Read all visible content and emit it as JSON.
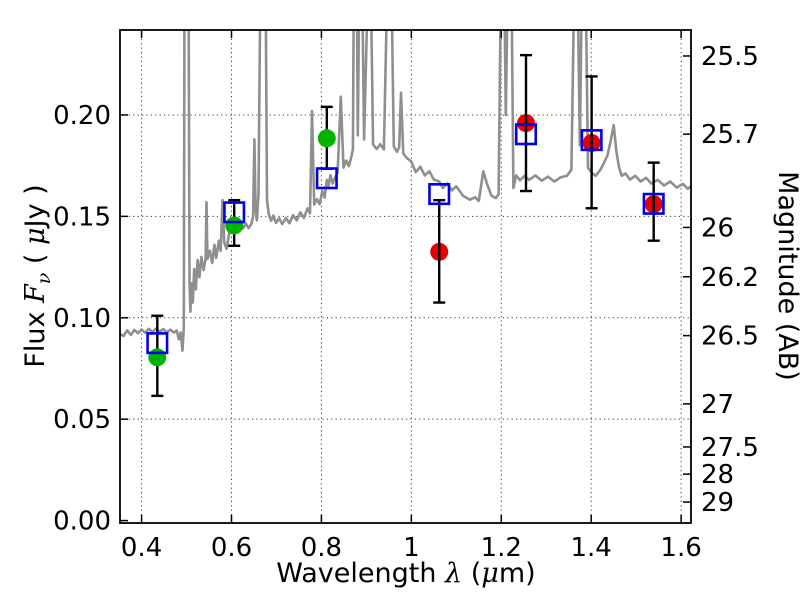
{
  "chart_data": {
    "type": "line",
    "title": "",
    "xlabel_plain": "Wavelength λ (μm)",
    "ylabel_left_plain": "Flux Fν ( μJy )",
    "ylabel_right": "Magnitude (AB)",
    "xlim": [
      0.352,
      1.622
    ],
    "ylim_flux": [
      -0.0012,
      0.2419
    ],
    "x_ticks": [
      0.4,
      0.6,
      0.8,
      1.0,
      1.2,
      1.4,
      1.6
    ],
    "x_tick_labels": [
      "0.4",
      "0.6",
      "0.8",
      "1",
      "1.2",
      "1.4",
      "1.6"
    ],
    "y_ticks_left": [
      0.0,
      0.05,
      0.1,
      0.15,
      0.2
    ],
    "y_tick_labels_left": [
      "0.00",
      "0.05",
      "0.10",
      "0.15",
      "0.20"
    ],
    "y_ticks_right_mag": [
      25.5,
      25.7,
      26,
      26.2,
      26.5,
      27,
      27.5,
      28,
      29
    ],
    "y_tick_labels_right": [
      "25.5",
      "25.7",
      "26",
      "26.2",
      "26.5",
      "27",
      "27.5",
      "28",
      "29"
    ],
    "mag_zeropoint_ab": 23.9,
    "grid": "dotted, both axes at major ticks",
    "legend": "none",
    "xlabel_parts": [
      {
        "t": "Wavelength  ",
        "mi": false
      },
      {
        "t": "λ",
        "mi": true
      },
      {
        "t": " (",
        "mi": false
      },
      {
        "t": "μ",
        "mi": true
      },
      {
        "t": "m)",
        "mi": false
      }
    ],
    "ylabel_left_parts": [
      {
        "t": "Flux  ",
        "mi": false
      },
      {
        "t": "F",
        "mi": true
      },
      {
        "t": "ν",
        "mi": true,
        "sub": true
      },
      {
        "t": " ( ",
        "mi": false
      },
      {
        "t": "μ",
        "mi": true
      },
      {
        "t": "Jy )",
        "mi": false
      }
    ],
    "colors": {
      "spectrum": "#8f8f8f",
      "green_marker": "#00b300",
      "red_marker": "#e80000",
      "blue_square": "#0000ee",
      "error_bar": "#000000",
      "frame": "#000000",
      "grid": "#3a3a3a"
    },
    "series": [
      {
        "name": "model-spectrum",
        "type": "line",
        "points": [
          [
            0.352,
            0.092
          ],
          [
            0.36,
            0.091
          ],
          [
            0.368,
            0.0938
          ],
          [
            0.376,
            0.0915
          ],
          [
            0.384,
            0.094
          ],
          [
            0.392,
            0.0924
          ],
          [
            0.4,
            0.0942
          ],
          [
            0.408,
            0.0926
          ],
          [
            0.416,
            0.0945
          ],
          [
            0.424,
            0.093
          ],
          [
            0.432,
            0.0947
          ],
          [
            0.44,
            0.0931
          ],
          [
            0.448,
            0.0944
          ],
          [
            0.456,
            0.0929
          ],
          [
            0.464,
            0.0941
          ],
          [
            0.472,
            0.0927
          ],
          [
            0.478,
            0.0937
          ],
          [
            0.483,
            0.0894
          ],
          [
            0.487,
            0.0928
          ],
          [
            0.491,
            0.0838
          ],
          [
            0.494,
            0.095
          ],
          [
            0.4955,
            0.26
          ],
          [
            0.5045,
            0.26
          ],
          [
            0.5065,
            0.118
          ],
          [
            0.5085,
            0.103
          ],
          [
            0.511,
            0.117
          ],
          [
            0.514,
            0.1075
          ],
          [
            0.517,
            0.124
          ],
          [
            0.5205,
            0.114
          ],
          [
            0.5245,
            0.1285
          ],
          [
            0.5285,
            0.12
          ],
          [
            0.533,
            0.13
          ],
          [
            0.538,
            0.1235
          ],
          [
            0.5425,
            0.129
          ],
          [
            0.5445,
            0.157
          ],
          [
            0.5465,
            0.129
          ],
          [
            0.552,
            0.133
          ],
          [
            0.557,
            0.127
          ],
          [
            0.562,
            0.136
          ],
          [
            0.566,
            0.1295
          ],
          [
            0.572,
            0.138
          ],
          [
            0.576,
            0.133
          ],
          [
            0.58,
            0.158
          ],
          [
            0.584,
            0.137
          ],
          [
            0.589,
            0.134
          ],
          [
            0.595,
            0.142
          ],
          [
            0.6,
            0.146
          ],
          [
            0.605,
            0.1432
          ],
          [
            0.61,
            0.1478
          ],
          [
            0.615,
            0.145
          ],
          [
            0.62,
            0.1473
          ],
          [
            0.626,
            0.1441
          ],
          [
            0.632,
            0.1464
          ],
          [
            0.638,
            0.1442
          ],
          [
            0.644,
            0.1462
          ],
          [
            0.648,
            0.15
          ],
          [
            0.651,
            0.188
          ],
          [
            0.6535,
            0.153
          ],
          [
            0.6565,
            0.148
          ],
          [
            0.66,
            0.161
          ],
          [
            0.664,
            0.26
          ],
          [
            0.676,
            0.26
          ],
          [
            0.679,
            0.158
          ],
          [
            0.683,
            0.151
          ],
          [
            0.688,
            0.1478
          ],
          [
            0.693,
            0.1504
          ],
          [
            0.699,
            0.1468
          ],
          [
            0.706,
            0.149
          ],
          [
            0.713,
            0.1462
          ],
          [
            0.721,
            0.1492
          ],
          [
            0.729,
            0.1466
          ],
          [
            0.737,
            0.1506
          ],
          [
            0.745,
            0.148
          ],
          [
            0.753,
            0.152
          ],
          [
            0.761,
            0.1492
          ],
          [
            0.769,
            0.154
          ],
          [
            0.7745,
            0.1515
          ],
          [
            0.779,
            0.202
          ],
          [
            0.784,
            0.1558
          ],
          [
            0.79,
            0.1585
          ],
          [
            0.796,
            0.156
          ],
          [
            0.802,
            0.1625
          ],
          [
            0.807,
            0.1592
          ],
          [
            0.812,
            0.168
          ],
          [
            0.816,
            0.1652
          ],
          [
            0.82,
            0.1703
          ],
          [
            0.825,
            0.1662
          ],
          [
            0.83,
            0.169
          ],
          [
            0.836,
            0.1716
          ],
          [
            0.843,
            0.209
          ],
          [
            0.849,
            0.174
          ],
          [
            0.855,
            0.1775
          ],
          [
            0.861,
            0.1748
          ],
          [
            0.866,
            0.1788
          ],
          [
            0.87,
            0.183
          ],
          [
            0.872,
            0.26
          ],
          [
            0.879,
            0.26
          ],
          [
            0.881,
            0.19
          ],
          [
            0.884,
            0.26
          ],
          [
            0.891,
            0.26
          ],
          [
            0.895,
            0.188
          ],
          [
            0.903,
            0.26
          ],
          [
            0.91,
            0.26
          ],
          [
            0.915,
            0.1855
          ],
          [
            0.923,
            0.1832
          ],
          [
            0.931,
            0.1856
          ],
          [
            0.939,
            0.183
          ],
          [
            0.946,
            0.26
          ],
          [
            0.956,
            0.26
          ],
          [
            0.961,
            0.1845
          ],
          [
            0.968,
            0.1818
          ],
          [
            0.973,
            0.1842
          ],
          [
            0.977,
            0.211
          ],
          [
            0.982,
            0.181
          ],
          [
            0.99,
            0.1788
          ],
          [
            1.0,
            0.177
          ],
          [
            1.01,
            0.1718
          ],
          [
            1.02,
            0.1745
          ],
          [
            1.03,
            0.1702
          ],
          [
            1.04,
            0.1722
          ],
          [
            1.05,
            0.1682
          ],
          [
            1.062,
            0.1672
          ],
          [
            1.07,
            0.164
          ],
          [
            1.08,
            0.1662
          ],
          [
            1.09,
            0.1628
          ],
          [
            1.1,
            0.1648
          ],
          [
            1.115,
            0.1602
          ],
          [
            1.13,
            0.1582
          ],
          [
            1.142,
            0.1594
          ],
          [
            1.15,
            0.1576
          ],
          [
            1.16,
            0.1722
          ],
          [
            1.168,
            0.1662
          ],
          [
            1.178,
            0.1602
          ],
          [
            1.188,
            0.159
          ],
          [
            1.194,
            0.161
          ],
          [
            1.199,
            0.26
          ],
          [
            1.207,
            0.26
          ],
          [
            1.21,
            0.2
          ],
          [
            1.214,
            0.26
          ],
          [
            1.223,
            0.26
          ],
          [
            1.227,
            0.164
          ],
          [
            1.233,
            0.1702
          ],
          [
            1.242,
            0.1678
          ],
          [
            1.252,
            0.17
          ],
          [
            1.262,
            0.168
          ],
          [
            1.276,
            0.1702
          ],
          [
            1.29,
            0.1676
          ],
          [
            1.304,
            0.1696
          ],
          [
            1.318,
            0.1672
          ],
          [
            1.332,
            0.1692
          ],
          [
            1.346,
            0.17
          ],
          [
            1.356,
            0.173
          ],
          [
            1.362,
            0.26
          ],
          [
            1.37,
            0.26
          ],
          [
            1.375,
            0.185
          ],
          [
            1.379,
            0.26
          ],
          [
            1.388,
            0.26
          ],
          [
            1.393,
            0.174
          ],
          [
            1.401,
            0.1715
          ],
          [
            1.41,
            0.17
          ],
          [
            1.42,
            0.1728
          ],
          [
            1.428,
            0.1762
          ],
          [
            1.436,
            0.18
          ],
          [
            1.444,
            0.188
          ],
          [
            1.45,
            0.195
          ],
          [
            1.456,
            0.182
          ],
          [
            1.462,
            0.174
          ],
          [
            1.468,
            0.17
          ],
          [
            1.476,
            0.1712
          ],
          [
            1.486,
            0.1682
          ],
          [
            1.498,
            0.17
          ],
          [
            1.51,
            0.1672
          ],
          [
            1.522,
            0.169
          ],
          [
            1.534,
            0.1662
          ],
          [
            1.548,
            0.168
          ],
          [
            1.562,
            0.1652
          ],
          [
            1.576,
            0.1672
          ],
          [
            1.59,
            0.1642
          ],
          [
            1.604,
            0.166
          ],
          [
            1.615,
            0.1636
          ],
          [
            1.622,
            0.165
          ]
        ]
      },
      {
        "name": "red-circles",
        "type": "scatter",
        "marker": "filled-circle",
        "points": [
          [
            1.062,
            0.1325
          ],
          [
            1.255,
            0.196
          ],
          [
            1.401,
            0.1862
          ],
          [
            1.539,
            0.156
          ]
        ]
      },
      {
        "name": "green-circles",
        "type": "scatter",
        "marker": "filled-circle",
        "points": [
          [
            0.435,
            0.0805
          ],
          [
            0.606,
            0.1455
          ],
          [
            0.812,
            0.1885
          ]
        ]
      },
      {
        "name": "blue-squares",
        "type": "scatter",
        "marker": "open-square",
        "points": [
          [
            0.435,
            0.0875
          ],
          [
            0.606,
            0.152
          ],
          [
            0.812,
            0.1688
          ],
          [
            1.062,
            0.161
          ],
          [
            1.255,
            0.1905
          ],
          [
            1.401,
            0.1876
          ],
          [
            1.539,
            0.1562
          ]
        ]
      },
      {
        "name": "error-bars",
        "type": "errorbar",
        "bars": [
          {
            "x": 0.435,
            "lo": 0.0615,
            "hi": 0.101
          },
          {
            "x": 0.606,
            "lo": 0.1355,
            "hi": 0.158
          },
          {
            "x": 0.812,
            "lo": 0.1735,
            "hi": 0.204
          },
          {
            "x": 1.062,
            "lo": 0.1075,
            "hi": 0.158
          },
          {
            "x": 1.255,
            "lo": 0.1625,
            "hi": 0.2295
          },
          {
            "x": 1.401,
            "lo": 0.154,
            "hi": 0.219
          },
          {
            "x": 1.539,
            "lo": 0.138,
            "hi": 0.1765
          }
        ]
      }
    ]
  }
}
